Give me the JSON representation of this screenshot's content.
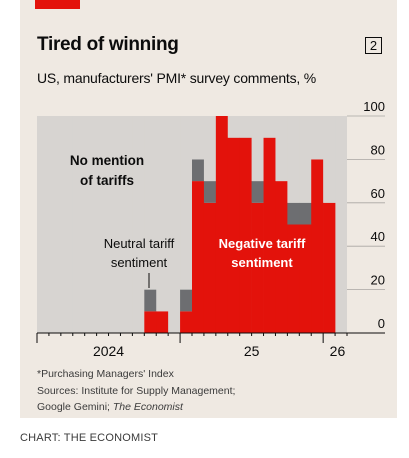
{
  "title": "Tired of winning",
  "chart_number": "2",
  "subtitle": "US, manufacturers' PMI* survey comments, %",
  "chart_data": {
    "type": "bar",
    "stacked": true,
    "x": [
      "2024-01",
      "2024-02",
      "2024-03",
      "2024-04",
      "2024-05",
      "2024-06",
      "2024-07",
      "2024-08",
      "2024-09",
      "2024-10",
      "2024-11",
      "2024-12",
      "2025-01",
      "2025-02",
      "2025-03",
      "2025-04",
      "2025-05",
      "2025-06",
      "2025-07",
      "2025-08",
      "2025-09",
      "2025-10",
      "2025-11",
      "2025-12",
      "2026-01",
      "2026-02"
    ],
    "x_tick_labels": [
      "2024",
      "25",
      "26"
    ],
    "ylim": [
      0,
      100
    ],
    "y_ticks": [
      "0",
      "20",
      "40",
      "60",
      "80",
      "100"
    ],
    "series": [
      {
        "name": "Negative tariff sentiment",
        "color": "#e3120b",
        "values": [
          0,
          0,
          0,
          0,
          0,
          0,
          0,
          0,
          0,
          10,
          10,
          0,
          10,
          70,
          60,
          100,
          90,
          90,
          60,
          90,
          70,
          50,
          50,
          80,
          60,
          0
        ]
      },
      {
        "name": "Neutral tariff sentiment",
        "color": "#6d6e71",
        "values": [
          0,
          0,
          0,
          0,
          0,
          0,
          0,
          0,
          0,
          10,
          0,
          0,
          10,
          10,
          10,
          0,
          0,
          0,
          10,
          0,
          0,
          10,
          10,
          0,
          0,
          0
        ]
      },
      {
        "name": "No mention of tariffs",
        "color": "#d7d4d1",
        "values": [
          100,
          100,
          100,
          100,
          100,
          100,
          100,
          100,
          100,
          80,
          90,
          100,
          80,
          20,
          30,
          0,
          10,
          10,
          30,
          10,
          30,
          40,
          40,
          20,
          40,
          0
        ]
      }
    ],
    "annotations": {
      "no_mention": [
        "No mention",
        "of tariffs"
      ],
      "neutral": [
        "Neutral tariff",
        "sentiment"
      ],
      "negative": [
        "Negative tariff",
        "sentiment"
      ]
    },
    "grid": true
  },
  "footnote": "*Purchasing Managers' Index",
  "sources_prefix": "Sources: Institute for Supply Management;",
  "sources_line2": "Google Gemini; ",
  "sources_italic": "The Economist",
  "credit": "CHART: THE ECONOMIST"
}
